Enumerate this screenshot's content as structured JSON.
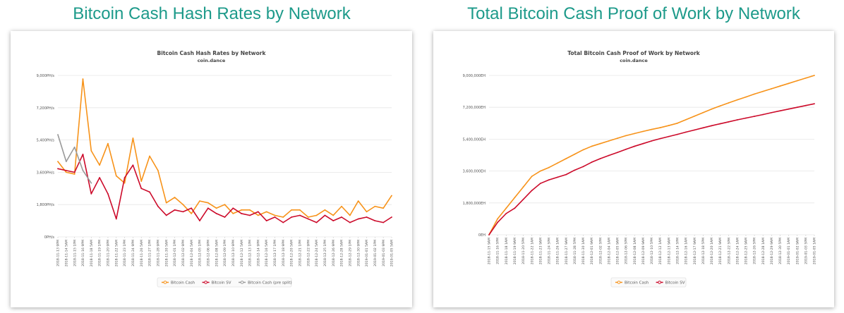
{
  "page": {
    "left_heading": "Bitcoin Cash Hash Rates by Network",
    "right_heading": "Total Bitcoin Cash Proof of Work by Network"
  },
  "chart_data": [
    {
      "type": "line",
      "title": "Bitcoin Cash Hash Rates by Network",
      "subtitle": "coin.dance",
      "ylim": [
        0,
        9000
      ],
      "yticks": [
        "9,000PH/s",
        "7,200PH/s",
        "5,400PH/s",
        "3,600PH/s",
        "1,800PH/s",
        "0PH/s"
      ],
      "grid": true,
      "legend_position": "bottom",
      "x": [
        "2018-11-13 9PM",
        "2018-11-14 5AM",
        "2018-11-15 1PM",
        "2018-11-16 9PM",
        "2018-11-18 5AM",
        "2018-11-19 1PM",
        "2018-11-20 9PM",
        "2018-11-22 5AM",
        "2018-11-23 1PM",
        "2018-11-24 9PM",
        "2018-11-26 5AM",
        "2018-11-27 1PM",
        "2018-11-28 9PM",
        "2018-11-30 5AM",
        "2018-12-01 1PM",
        "2018-12-02 9PM",
        "2018-12-04 5AM",
        "2018-12-05 1PM",
        "2018-12-06 9PM",
        "2018-12-08 5AM",
        "2018-12-09 1PM",
        "2018-12-10 9PM",
        "2018-12-12 5AM",
        "2018-12-13 1PM",
        "2018-12-14 9PM",
        "2018-12-16 5AM",
        "2018-12-17 1PM",
        "2018-12-18 9PM",
        "2018-12-20 5AM",
        "2018-12-21 1PM",
        "2018-12-22 9PM",
        "2018-12-24 5AM",
        "2018-12-25 1PM",
        "2018-12-26 9PM",
        "2018-12-28 5AM",
        "2018-12-29 1PM",
        "2018-12-30 9PM",
        "2019-01-01 5AM",
        "2019-01-02 1PM",
        "2019-01-03 9PM",
        "2019-01-05 5AM"
      ],
      "series": [
        {
          "name": "Bitcoin Cash",
          "color": "#f7931a",
          "values": [
            4200,
            3600,
            3500,
            8800,
            4800,
            4000,
            5200,
            3400,
            3000,
            5500,
            3100,
            4500,
            3700,
            1900,
            2200,
            1800,
            1300,
            2000,
            1900,
            1600,
            1800,
            1300,
            1500,
            1500,
            1200,
            1400,
            1200,
            1100,
            1500,
            1500,
            1100,
            1200,
            1500,
            1200,
            1700,
            1200,
            2000,
            1400,
            1700,
            1600,
            2300
          ]
        },
        {
          "name": "Bitcoin SV",
          "color": "#cc0a2a",
          "values": [
            3800,
            3700,
            3600,
            4600,
            2400,
            3300,
            2400,
            1000,
            3300,
            4000,
            2700,
            2500,
            1700,
            1200,
            1500,
            1400,
            1600,
            900,
            1600,
            1300,
            1100,
            1600,
            1300,
            1200,
            1400,
            900,
            1100,
            800,
            1100,
            1200,
            1000,
            800,
            1200,
            900,
            1100,
            800,
            1000,
            1100,
            900,
            800,
            1100
          ]
        },
        {
          "name": "Bitcoin Cash (pre split)",
          "color": "#999999",
          "values": [
            5700,
            4200,
            5000,
            3700,
            3000,
            null,
            null,
            null,
            null,
            null,
            null,
            null,
            null,
            null,
            null,
            null,
            null,
            null,
            null,
            null,
            null,
            null,
            null,
            null,
            null,
            null,
            null,
            null,
            null,
            null,
            null,
            null,
            null,
            null,
            null,
            null,
            null,
            null,
            null,
            null,
            null
          ]
        }
      ]
    },
    {
      "type": "line",
      "title": "Total Bitcoin Cash Proof of Work by Network",
      "subtitle": "coin.dance",
      "ylim": [
        0,
        9000000
      ],
      "yticks": [
        "9,000,000EH",
        "7,200,000EH",
        "5,400,000EH",
        "3,600,000EH",
        "1,800,000EH",
        "0EH"
      ],
      "grid": true,
      "legend_position": "bottom",
      "x": [
        "2018-11-15 9AM",
        "2018-11-16 5PM",
        "2018-11-18 1AM",
        "2018-11-19 9AM",
        "2018-11-20 5PM",
        "2018-11-22 1AM",
        "2018-11-23 9AM",
        "2018-11-24 5PM",
        "2018-11-26 1AM",
        "2018-11-27 9AM",
        "2018-11-28 5PM",
        "2018-11-30 1AM",
        "2018-12-01 9AM",
        "2018-12-02 5PM",
        "2018-12-04 1AM",
        "2018-12-05 9AM",
        "2018-12-06 5PM",
        "2018-12-08 1AM",
        "2018-12-09 9AM",
        "2018-12-10 5PM",
        "2018-12-12 1AM",
        "2018-12-13 9AM",
        "2018-12-14 5PM",
        "2018-12-16 1AM",
        "2018-12-17 9AM",
        "2018-12-18 5PM",
        "2018-12-20 1AM",
        "2018-12-21 9AM",
        "2018-12-22 5PM",
        "2018-12-24 1AM",
        "2018-12-25 9AM",
        "2018-12-26 5PM",
        "2018-12-28 1AM",
        "2018-12-29 9AM",
        "2018-12-30 5PM",
        "2019-01-01 1AM",
        "2019-01-02 9AM",
        "2019-01-03 5PM",
        "2019-01-05 1AM"
      ],
      "series": [
        {
          "name": "Bitcoin Cash",
          "color": "#f7931a",
          "values": [
            0,
            900000,
            1500000,
            2100000,
            2700000,
            3300000,
            3600000,
            3800000,
            4050000,
            4300000,
            4550000,
            4800000,
            5000000,
            5150000,
            5300000,
            5450000,
            5600000,
            5720000,
            5840000,
            5950000,
            6050000,
            6170000,
            6300000,
            6500000,
            6700000,
            6900000,
            7100000,
            7280000,
            7450000,
            7620000,
            7780000,
            7950000,
            8100000,
            8250000,
            8400000,
            8550000,
            8700000,
            8850000,
            9000000
          ]
        },
        {
          "name": "Bitcoin SV",
          "color": "#cc0a2a",
          "values": [
            0,
            700000,
            1200000,
            1500000,
            2000000,
            2500000,
            2900000,
            3100000,
            3250000,
            3400000,
            3650000,
            3850000,
            4100000,
            4300000,
            4480000,
            4650000,
            4830000,
            5000000,
            5150000,
            5300000,
            5430000,
            5550000,
            5670000,
            5800000,
            5920000,
            6040000,
            6160000,
            6270000,
            6380000,
            6490000,
            6590000,
            6690000,
            6790000,
            6900000,
            7000000,
            7100000,
            7200000,
            7300000,
            7400000
          ]
        }
      ]
    }
  ]
}
